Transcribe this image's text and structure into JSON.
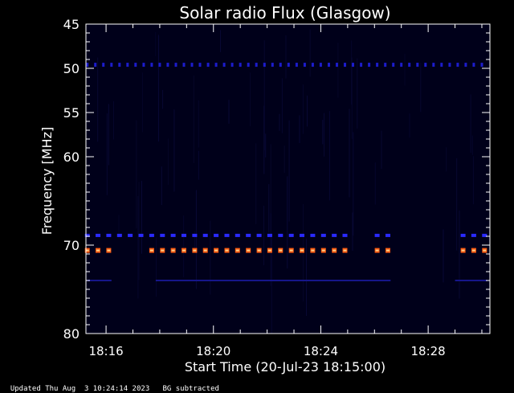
{
  "chart_data": {
    "type": "heatmap",
    "title": "Solar radio Flux (Glasgow)",
    "xlabel": "Start Time (20-Jul-23 18:15:00)",
    "ylabel": "Frequency [MHz]",
    "x_ticks": [
      "18:16",
      "18:20",
      "18:24",
      "18:28"
    ],
    "x_tick_minutes": [
      1,
      5,
      9,
      13
    ],
    "xlim_minutes": [
      0.25,
      15.3
    ],
    "y_ticks": [
      45,
      50,
      55,
      60,
      70,
      80
    ],
    "ylim": [
      45,
      80
    ],
    "y_axis_inverted": true,
    "bands": [
      {
        "freq": 49.6,
        "color": "#1c1ccc",
        "style": "dots",
        "gaps": []
      },
      {
        "freq": 68.9,
        "color": "#2a2aff",
        "style": "dashes",
        "gaps": [
          [
            10.1,
            10.9
          ],
          [
            11.6,
            14.0
          ]
        ]
      },
      {
        "freq": 70.6,
        "color": "#ff5a10",
        "style": "dashes",
        "gaps": [
          [
            1.4,
            2.5
          ],
          [
            10.1,
            10.9
          ],
          [
            11.6,
            14.0
          ]
        ]
      },
      {
        "freq": 74.0,
        "color": "#16168a",
        "style": "line",
        "gaps": [
          [
            1.2,
            2.8
          ],
          [
            11.6,
            14.0
          ]
        ]
      }
    ],
    "background_color": "#00001a",
    "footer_left": "Updated Thu Aug  3 10:24:14 2023",
    "footer_right": "BG subtracted"
  }
}
